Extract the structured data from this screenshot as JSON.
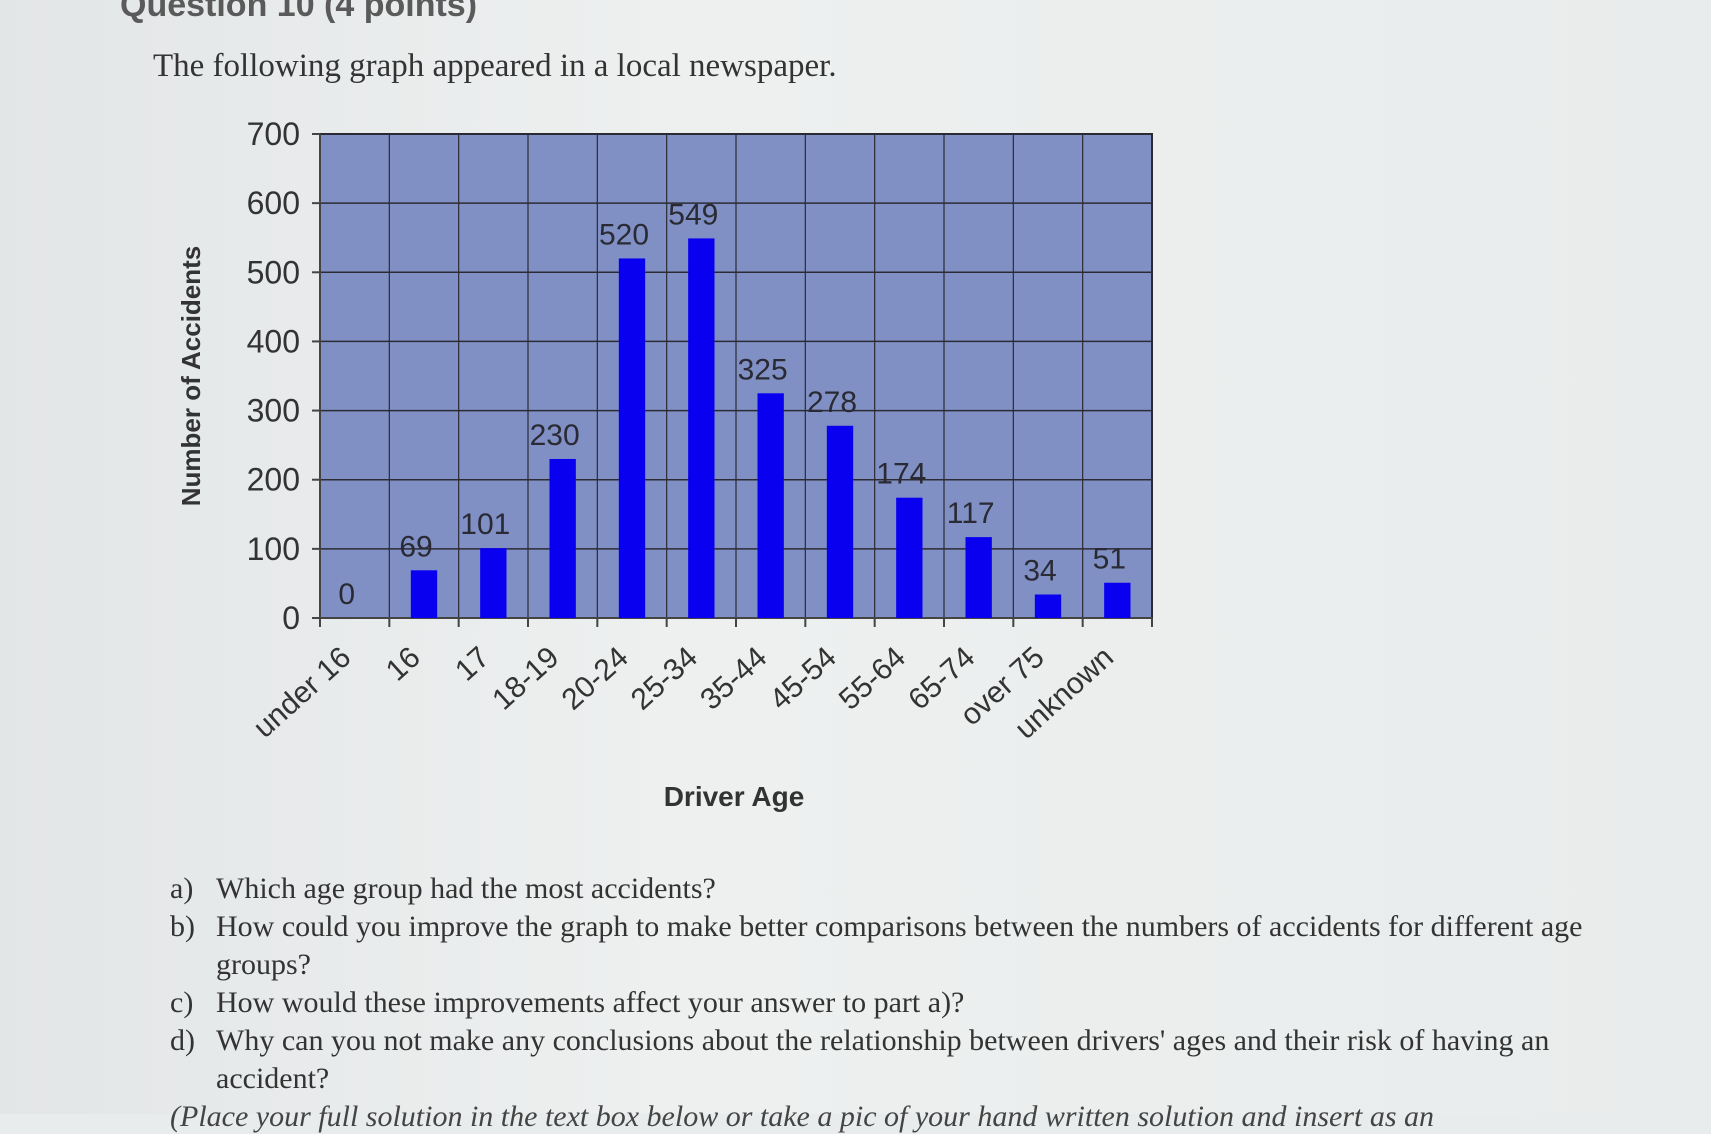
{
  "header_partial": "Question 10 (4 points)",
  "intro": "The following graph appeared in a local newspaper.",
  "chart_data": {
    "type": "bar",
    "categories": [
      "under 16",
      "16",
      "17",
      "18-19",
      "20-24",
      "25-34",
      "35-44",
      "45-54",
      "55-64",
      "65-74",
      "over 75",
      "unknown"
    ],
    "values": [
      0,
      69,
      101,
      230,
      520,
      549,
      325,
      278,
      174,
      117,
      34,
      51
    ],
    "data_labels": [
      "0",
      "69",
      "101",
      "230",
      "520",
      "549",
      "325",
      "278",
      "174",
      "117",
      "34",
      "51"
    ],
    "title": "",
    "xlabel": "Driver Age",
    "ylabel": "Number of Accidents",
    "ylim": [
      0,
      700
    ],
    "yticks": [
      0,
      100,
      200,
      300,
      400,
      500,
      600,
      700
    ],
    "grid": true,
    "colors": {
      "bar": "#0a00f0",
      "plot_background": "#8090c4",
      "grid": "#2b2b33",
      "text": "#333333"
    }
  },
  "questions": [
    {
      "letter": "a)",
      "text": "Which age group had the most accidents?"
    },
    {
      "letter": "b)",
      "text": "How could you improve the graph to make better comparisons between the numbers of accidents for different age groups?"
    },
    {
      "letter": "c)",
      "text": "How would these improvements affect your answer to part a)?"
    },
    {
      "letter": "d)",
      "text": "Why can you not make any conclusions about the relationship between drivers' ages and their risk of having an accident?"
    }
  ],
  "cutoff_text": "(Place your full solution in the text box below or take a pic of your hand written solution and insert as an"
}
